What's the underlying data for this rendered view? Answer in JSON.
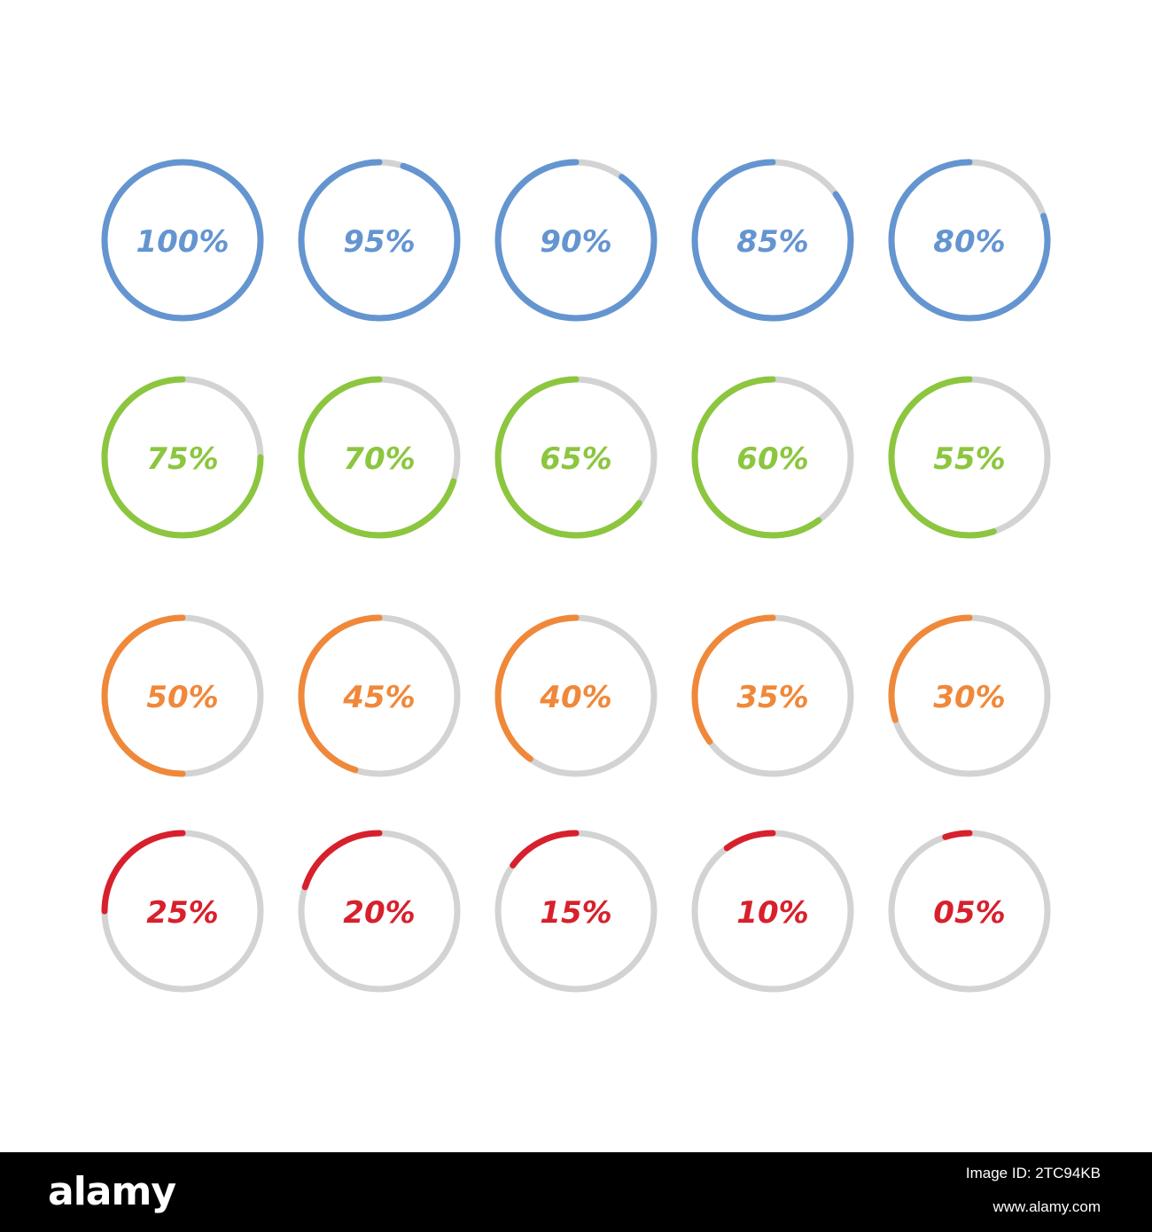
{
  "colors": {
    "track": "#d3d3d3",
    "blue": "#6495d0",
    "green": "#8cc63f",
    "orange": "#f0883a",
    "red": "#d8202d",
    "footer_bg": "#000000"
  },
  "rings": [
    {
      "label": "100%",
      "value": 100,
      "color": "blue"
    },
    {
      "label": "95%",
      "value": 95,
      "color": "blue"
    },
    {
      "label": "90%",
      "value": 90,
      "color": "blue"
    },
    {
      "label": "85%",
      "value": 85,
      "color": "blue"
    },
    {
      "label": "80%",
      "value": 80,
      "color": "blue"
    },
    {
      "label": "75%",
      "value": 75,
      "color": "green"
    },
    {
      "label": "70%",
      "value": 70,
      "color": "green"
    },
    {
      "label": "65%",
      "value": 65,
      "color": "green"
    },
    {
      "label": "60%",
      "value": 60,
      "color": "green"
    },
    {
      "label": "55%",
      "value": 55,
      "color": "green"
    },
    {
      "label": "50%",
      "value": 50,
      "color": "orange"
    },
    {
      "label": "45%",
      "value": 45,
      "color": "orange"
    },
    {
      "label": "40%",
      "value": 40,
      "color": "orange"
    },
    {
      "label": "35%",
      "value": 35,
      "color": "orange"
    },
    {
      "label": "30%",
      "value": 30,
      "color": "orange"
    },
    {
      "label": "25%",
      "value": 25,
      "color": "red"
    },
    {
      "label": "20%",
      "value": 20,
      "color": "red"
    },
    {
      "label": "15%",
      "value": 15,
      "color": "red"
    },
    {
      "label": "10%",
      "value": 10,
      "color": "red"
    },
    {
      "label": "05%",
      "value": 5,
      "color": "red"
    }
  ],
  "footer": {
    "logo_text": "alamy",
    "image_id": "Image ID: 2TC94KB",
    "url": "www.alamy.com"
  }
}
